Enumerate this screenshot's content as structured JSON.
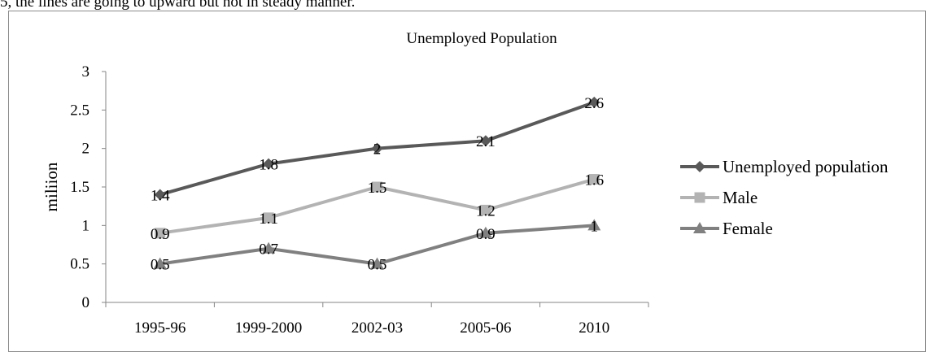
{
  "caption": "5, the lines are going to upward but not in steady manner.",
  "chart_data": {
    "type": "line",
    "title": "Unemployed  Population",
    "xlabel": "",
    "ylabel": "miliion",
    "categories": [
      "1995-96",
      "1999-2000",
      "2002-03",
      "2005-06",
      "2010"
    ],
    "ylim": [
      0,
      3
    ],
    "yticks": [
      "0",
      "0.5",
      "1",
      "1.5",
      "2",
      "2.5",
      "3"
    ],
    "grid": false,
    "legend_position": "right",
    "series": [
      {
        "name": "Unemployed population",
        "values": [
          1.4,
          1.8,
          2,
          2.1,
          2.6
        ],
        "labels": [
          "1.4",
          "1.8",
          "2",
          "2.1",
          "2.6"
        ],
        "color": "#595959",
        "marker": "diamond-icon"
      },
      {
        "name": "Male",
        "values": [
          0.9,
          1.1,
          1.5,
          1.2,
          1.6
        ],
        "labels": [
          "0.9",
          "1.1",
          "1.5",
          "1.2",
          "1.6"
        ],
        "color": "#b3b3b3",
        "marker": "square-icon"
      },
      {
        "name": "Female",
        "values": [
          0.5,
          0.7,
          0.5,
          0.9,
          1
        ],
        "labels": [
          "0.5",
          "0.7",
          "0.5",
          "0.9",
          "1"
        ],
        "color": "#808080",
        "marker": "triangle-icon"
      }
    ]
  }
}
